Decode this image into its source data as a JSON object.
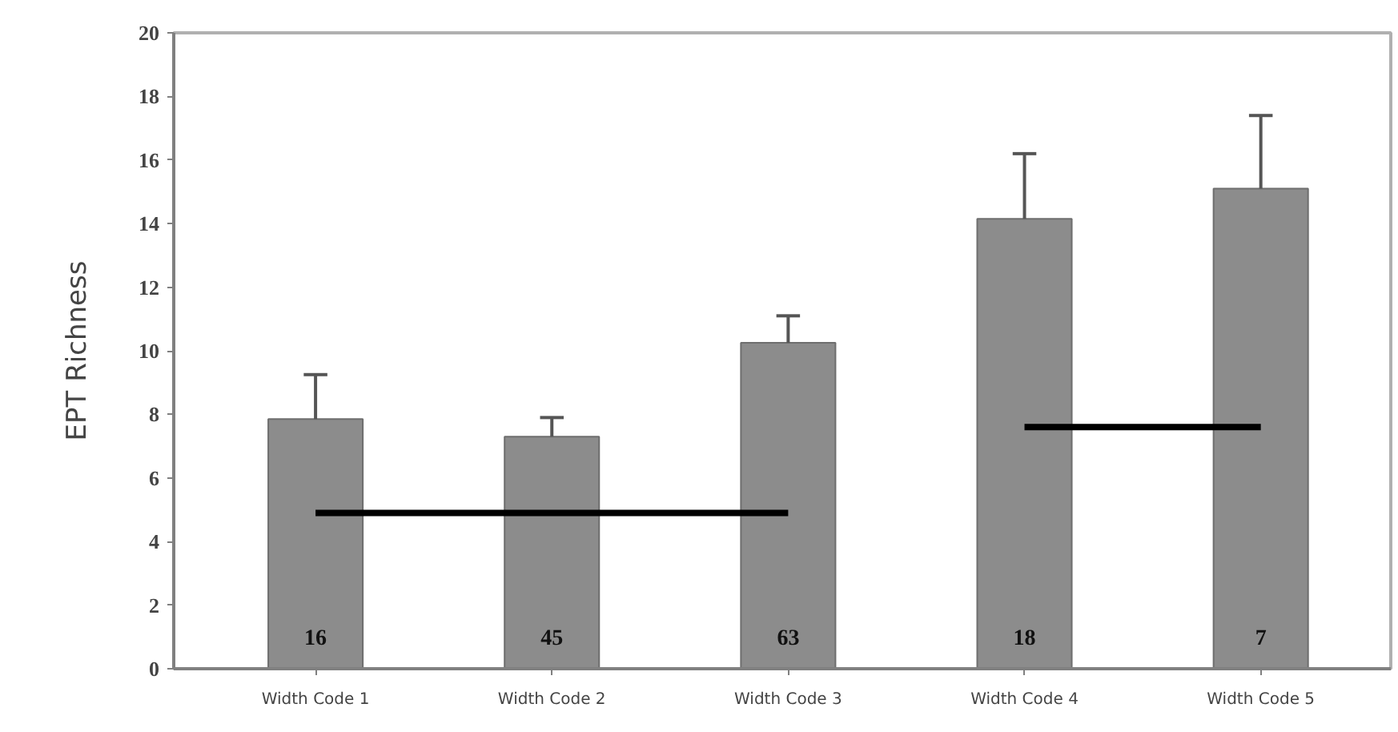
{
  "chart_data": {
    "type": "bar",
    "ylabel": "EPT Richness",
    "categories": [
      "Width Code 1",
      "Width Code 2",
      "Width Code 3",
      "Width Code 4",
      "Width Code 5"
    ],
    "series": [
      {
        "color": "#8c8c8c",
        "values": [
          7.85,
          7.3,
          10.25,
          14.15,
          15.1
        ],
        "errors": [
          [
            7.85,
            9.25
          ],
          [
            7.3,
            7.9
          ],
          [
            10.25,
            11.1
          ],
          [
            14.15,
            16.2
          ],
          [
            15.1,
            17.4
          ]
        ]
      },
      {
        "type": "line",
        "color": "#000000",
        "values": [
          4.9,
          4.9,
          4.9,
          null,
          null
        ]
      },
      {
        "type": "line",
        "color": "#000000",
        "values": [
          null,
          null,
          null,
          7.6,
          7.6
        ]
      }
    ],
    "annotations": [
      "16",
      "45",
      "63",
      "18",
      "7"
    ],
    "ylim": [
      0,
      20
    ],
    "yticks": [
      0,
      2,
      4,
      6,
      8,
      10,
      12,
      14,
      16,
      18,
      20
    ],
    "grid": false
  }
}
